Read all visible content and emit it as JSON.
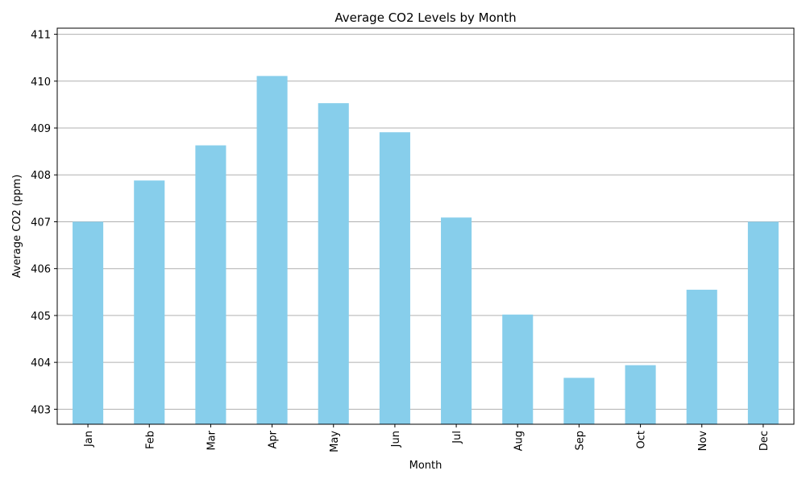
{
  "chart_data": {
    "type": "bar",
    "title": "Average CO2 Levels by Month",
    "xlabel": "Month",
    "ylabel": "Average CO2 (ppm)",
    "categories": [
      "Jan",
      "Feb",
      "Mar",
      "Apr",
      "May",
      "Jun",
      "Jul",
      "Aug",
      "Sep",
      "Oct",
      "Nov",
      "Dec"
    ],
    "values": [
      407.0,
      407.88,
      408.63,
      410.11,
      409.53,
      408.91,
      407.09,
      405.02,
      403.67,
      403.94,
      405.55,
      407.0
    ],
    "ylim": [
      402.68,
      411.13
    ],
    "yticks": [
      403,
      404,
      405,
      406,
      407,
      408,
      409,
      410,
      411
    ],
    "grid": "horizontal",
    "bar_color": "#87ceeb",
    "grid_color": "#b0b0b0"
  }
}
